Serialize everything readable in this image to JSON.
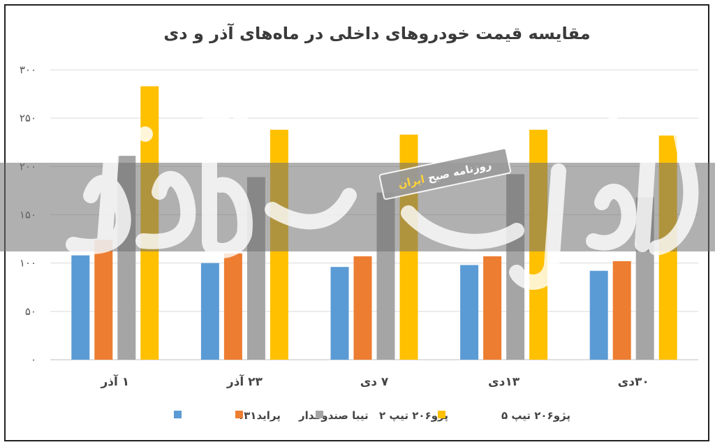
{
  "chart_data": {
    "type": "bar",
    "title": "مقایسه قیمت خودروهای داخلی در ماه‌های آذر و دی",
    "categories": [
      "۱ آذر",
      "۲۳ آذر",
      "۷ دی",
      "۱۳دی",
      "۳۰دی"
    ],
    "series": [
      {
        "name": "پراید۱۳۱",
        "color": "#5b9bd5",
        "values": [
          108,
          100,
          96,
          98,
          92
        ]
      },
      {
        "name": "تیبا صندوقدار",
        "color": "#ed7d31",
        "values": [
          124,
          110,
          107,
          107,
          102
        ]
      },
      {
        "name": "پژو۲۰۶ تیپ ۲",
        "color": "#a5a5a5",
        "values": [
          211,
          189,
          173,
          192,
          168
        ]
      },
      {
        "name": "پژو۲۰۶ تیپ ۵",
        "color": "#ffc000",
        "values": [
          283,
          238,
          233,
          238,
          232
        ]
      }
    ],
    "ylim": [
      0,
      300
    ],
    "yticks": [
      0,
      50,
      100,
      150,
      200,
      250,
      300
    ],
    "ytick_labels": [
      "۰",
      "۵۰",
      "۱۰۰",
      "۱۵۰",
      "۲۰۰",
      "۲۵۰",
      "۳۰۰"
    ],
    "grid": true,
    "legend_position": "bottom"
  },
  "watermark": {
    "main_text": "دنیای اقتصاد",
    "stamp_prefix": "روزنامه صبح ",
    "stamp_accent": "ایران"
  }
}
